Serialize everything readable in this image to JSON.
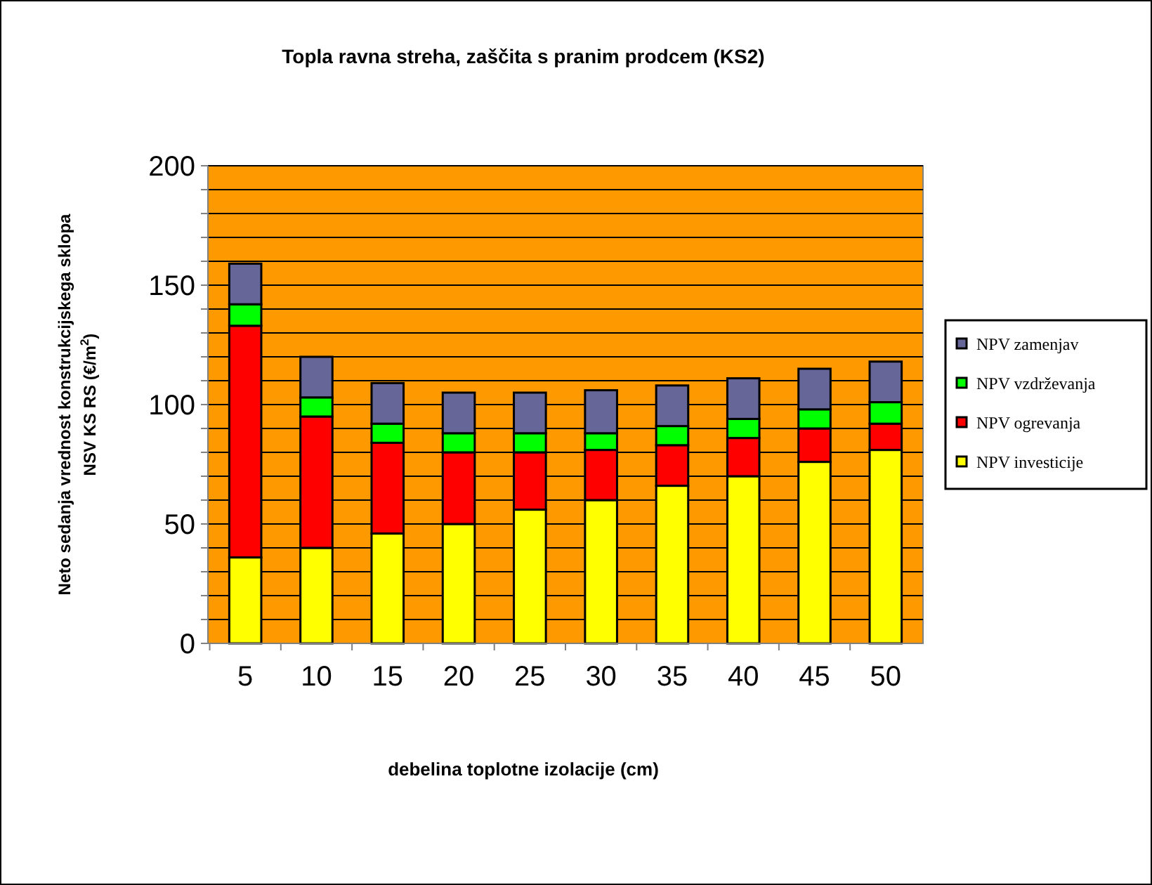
{
  "chart_data": {
    "type": "bar",
    "title": "Topla ravna streha, zaščita s pranim prodcem (KS2)",
    "xlabel": "debelina toplotne izolacije (cm)",
    "ylabel": "Neto sedanja vrednost konstrukcijskega sklopa\nNSV KS RS (€/m$^{2}$)",
    "categories": [
      "5",
      "10",
      "15",
      "20",
      "25",
      "30",
      "35",
      "40",
      "45",
      "50"
    ],
    "stacked": true,
    "series": [
      {
        "name": "NPV investicije",
        "color": "#ffff00",
        "values": [
          36,
          40,
          46,
          50,
          56,
          60,
          66,
          70,
          76,
          81
        ]
      },
      {
        "name": "NPV ogrevanja",
        "color": "#ff0000",
        "values": [
          97,
          55,
          38,
          30,
          24,
          21,
          17,
          16,
          14,
          11
        ]
      },
      {
        "name": "NPV vzdrževanja",
        "color": "#00ff00",
        "values": [
          9,
          8,
          8,
          8,
          8,
          7,
          8,
          8,
          8,
          9
        ]
      },
      {
        "name": "NPV zamenjav",
        "color": "#666699",
        "values": [
          17,
          17,
          17,
          17,
          17,
          18,
          17,
          17,
          17,
          17
        ]
      }
    ],
    "ylim": [
      0,
      200
    ],
    "yticks": [
      0,
      {
        "value": 10,
        "label": null
      },
      {
        "value": 20,
        "label": null
      },
      {
        "value": 30,
        "label": null
      },
      {
        "value": 40,
        "label": null
      },
      50,
      {
        "value": 60,
        "label": null
      },
      {
        "value": 70,
        "label": null
      },
      {
        "value": 80,
        "label": null
      },
      {
        "value": 90,
        "label": null
      },
      100,
      {
        "value": 110,
        "label": null
      },
      {
        "value": 120,
        "label": null
      },
      {
        "value": 130,
        "label": null
      },
      {
        "value": 140,
        "label": null
      },
      150,
      {
        "value": 160,
        "label": null
      },
      {
        "value": 170,
        "label": null
      },
      {
        "value": 180,
        "label": null
      },
      {
        "value": 190,
        "label": null
      },
      200
    ],
    "grid": "y",
    "legend": "right"
  }
}
